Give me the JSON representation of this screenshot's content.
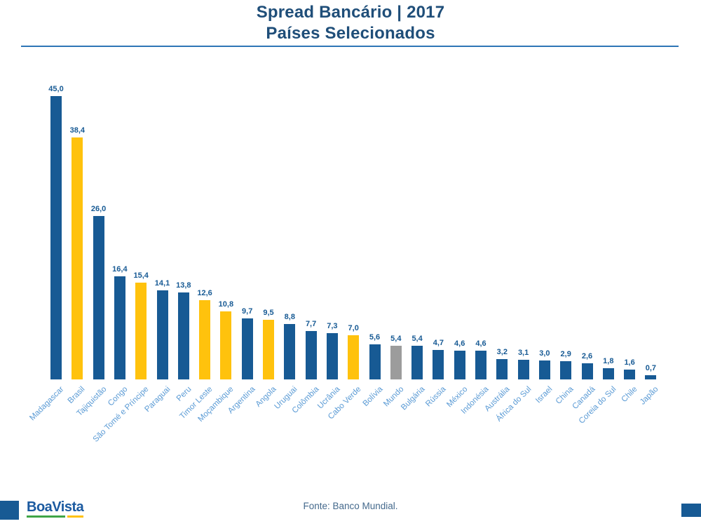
{
  "header": {
    "title_line1": "Spread Bancário | 2017",
    "title_line2": "Países Selecionados"
  },
  "chart_data": {
    "type": "bar",
    "title": "Spread Bancário | 2017",
    "subtitle": "Países Selecionados",
    "categories": [
      "Madagascar",
      "Brasil",
      "Tajiquistão",
      "Congo",
      "São Tomé e Príncipe",
      "Paraguai",
      "Peru",
      "Timor Leste",
      "Moçambique",
      "Argentina",
      "Angola",
      "Uruguai",
      "Colômbia",
      "Ucrânia",
      "Cabo Verde",
      "Bolívia",
      "Mundo",
      "Bulgária",
      "Rússia",
      "México",
      "Indonésia",
      "Austrália",
      "África do Sul",
      "Israel",
      "China",
      "Canadá",
      "Coreia do Sul",
      "Chile",
      "Japão"
    ],
    "values": [
      45.0,
      38.4,
      26.0,
      16.4,
      15.4,
      14.1,
      13.8,
      12.6,
      10.8,
      9.7,
      9.5,
      8.8,
      7.7,
      7.3,
      7.0,
      5.6,
      5.4,
      5.4,
      4.7,
      4.6,
      4.6,
      3.2,
      3.1,
      3.0,
      2.9,
      2.6,
      1.8,
      1.6,
      0.7
    ],
    "value_labels": [
      "45,0",
      "38,4",
      "26,0",
      "16,4",
      "15,4",
      "14,1",
      "13,8",
      "12,6",
      "10,8",
      "9,7",
      "9,5",
      "8,8",
      "7,7",
      "7,3",
      "7,0",
      "5,6",
      "5,4",
      "5,4",
      "4,7",
      "4,6",
      "4,6",
      "3,2",
      "3,1",
      "3,0",
      "2,9",
      "2,6",
      "1,8",
      "1,6",
      "0,7"
    ],
    "bar_colors": [
      "blue",
      "yellow",
      "blue",
      "blue",
      "yellow",
      "blue",
      "blue",
      "yellow",
      "yellow",
      "blue",
      "yellow",
      "blue",
      "blue",
      "blue",
      "yellow",
      "blue",
      "gray",
      "blue",
      "blue",
      "blue",
      "blue",
      "blue",
      "blue",
      "blue",
      "blue",
      "blue",
      "blue",
      "blue",
      "blue"
    ],
    "colors": {
      "blue": "#175A94",
      "yellow": "#FFC20D",
      "gray": "#9C9C9C"
    },
    "value_label_color": "#175A94",
    "category_label_color": "#5B9BD5",
    "xlabel": "",
    "ylabel": "",
    "ylim": [
      0,
      47
    ],
    "grid": false,
    "legend": false,
    "source": "Fonte: Banco Mundial."
  },
  "footer": {
    "logo_text": "BoaVista",
    "source_text": "Fonte: Banco Mundial."
  },
  "theme_colors": {
    "title": "#1F4E79",
    "title_rule": "#2E75B6",
    "logo_blue": "#1B5AA0",
    "logo_green": "#3FA546",
    "logo_yellow": "#FFC20D",
    "source": "#44698C"
  }
}
